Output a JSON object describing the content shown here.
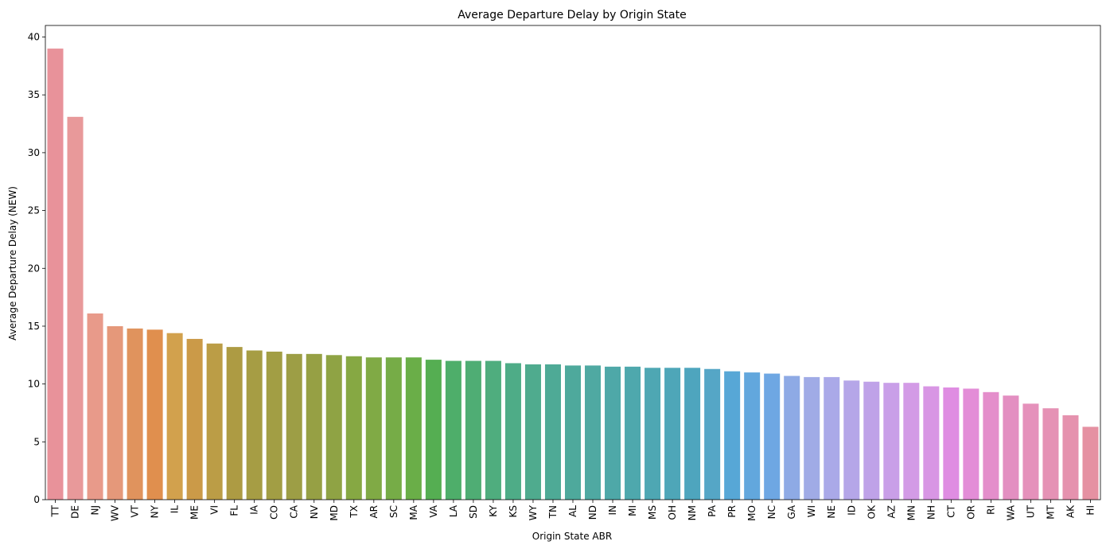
{
  "chart_data": {
    "type": "bar",
    "title": "Average Departure Delay by Origin State",
    "xlabel": "Origin State ABR",
    "ylabel": "Average Departure Delay (NEW)",
    "ylim": [
      0,
      41
    ],
    "yticks": [
      0,
      5,
      10,
      15,
      20,
      25,
      30,
      35,
      40
    ],
    "grid": false,
    "categories": [
      "TT",
      "DE",
      "NJ",
      "WV",
      "VT",
      "NY",
      "IL",
      "ME",
      "VI",
      "FL",
      "IA",
      "CO",
      "CA",
      "NV",
      "MD",
      "TX",
      "AR",
      "SC",
      "MA",
      "VA",
      "LA",
      "SD",
      "KY",
      "KS",
      "WY",
      "TN",
      "AL",
      "ND",
      "IN",
      "MI",
      "MS",
      "OH",
      "NM",
      "PA",
      "PR",
      "MO",
      "NC",
      "GA",
      "WI",
      "NE",
      "ID",
      "OK",
      "AZ",
      "MN",
      "NH",
      "CT",
      "OR",
      "RI",
      "WA",
      "UT",
      "MT",
      "AK",
      "HI"
    ],
    "values": [
      39.0,
      33.1,
      16.1,
      15.0,
      14.8,
      14.7,
      14.4,
      13.9,
      13.5,
      13.2,
      12.9,
      12.8,
      12.6,
      12.6,
      12.5,
      12.4,
      12.3,
      12.3,
      12.3,
      12.1,
      12.0,
      12.0,
      12.0,
      11.8,
      11.7,
      11.7,
      11.6,
      11.6,
      11.5,
      11.5,
      11.4,
      11.4,
      11.4,
      11.3,
      11.1,
      11.0,
      10.9,
      10.7,
      10.6,
      10.6,
      10.3,
      10.2,
      10.1,
      10.1,
      9.8,
      9.7,
      9.6,
      9.3,
      9.0,
      8.3,
      7.9,
      7.3,
      6.3
    ],
    "colors": [
      "#e8929a",
      "#e8999a",
      "#e89a8a",
      "#e5987a",
      "#e0935d",
      "#e08f4e",
      "#d2a14d",
      "#cb9a48",
      "#bb9d46",
      "#ad9b43",
      "#a69d44",
      "#a29e44",
      "#9d9e45",
      "#96a044",
      "#8fa344",
      "#86a843",
      "#80aa45",
      "#76ac47",
      "#6aae48",
      "#55ae52",
      "#4eae6a",
      "#4fad74",
      "#4fad7e",
      "#4eac87",
      "#4fab8e",
      "#4eaa96",
      "#4ea99c",
      "#4fa9a2",
      "#4ea8a8",
      "#4ea8ad",
      "#4ea7b3",
      "#4ea6b8",
      "#4ea5be",
      "#55a6c6",
      "#57a7d6",
      "#62a7dd",
      "#6ea7e3",
      "#8eaae5",
      "#a0abe6",
      "#aaa9e8",
      "#b5a6e8",
      "#bfa2e8",
      "#c99fe8",
      "#d39be6",
      "#d896e4",
      "#df8de2",
      "#e38dd7",
      "#e48ecb",
      "#e38fc1",
      "#e591bb",
      "#e592b5",
      "#e592ae",
      "#e591a2"
    ]
  }
}
